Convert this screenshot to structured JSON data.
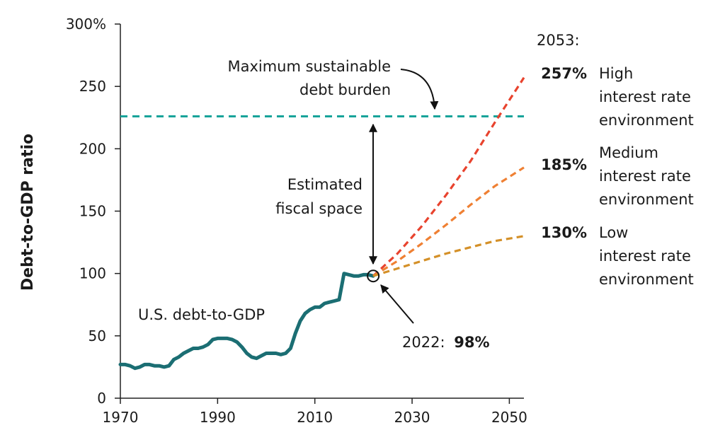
{
  "chart_data": {
    "type": "line",
    "ylabel": "Debt-to-GDP ratio",
    "xlim": [
      1970,
      2053
    ],
    "ylim": [
      0,
      300
    ],
    "y_ticks": [
      "300%",
      "250",
      "200",
      "150",
      "100",
      "50",
      "0"
    ],
    "x_ticks": [
      "1970",
      "1990",
      "2010",
      "2030",
      "2050"
    ],
    "grid": false,
    "series": [
      {
        "name": "U.S. debt-to-GDP",
        "color": "#1b6e73",
        "style": "solid",
        "x": [
          1970,
          1971,
          1972,
          1973,
          1974,
          1975,
          1976,
          1977,
          1978,
          1979,
          1980,
          1981,
          1982,
          1983,
          1984,
          1985,
          1986,
          1987,
          1988,
          1989,
          1990,
          1991,
          1992,
          1993,
          1994,
          1995,
          1996,
          1997,
          1998,
          1999,
          2000,
          2001,
          2002,
          2003,
          2004,
          2005,
          2006,
          2007,
          2008,
          2009,
          2010,
          2011,
          2012,
          2013,
          2014,
          2015,
          2016,
          2017,
          2018,
          2019,
          2020,
          2021,
          2022
        ],
        "y": [
          27,
          27,
          26,
          24,
          25,
          27,
          27,
          26,
          26,
          25,
          26,
          31,
          33,
          36,
          38,
          40,
          40,
          41,
          43,
          47,
          48,
          48,
          48,
          47,
          45,
          41,
          36,
          33,
          32,
          34,
          36,
          36,
          36,
          35,
          36,
          40,
          52,
          62,
          68,
          71,
          73,
          73,
          76,
          77,
          78,
          79,
          100,
          99,
          98,
          98,
          99,
          99,
          98
        ]
      },
      {
        "name": "High interest rate environment",
        "color": "#e8432e",
        "style": "dashed",
        "x": [
          2022,
          2027,
          2032,
          2037,
          2042,
          2047,
          2053
        ],
        "y": [
          98,
          116,
          138,
          163,
          190,
          221,
          257
        ]
      },
      {
        "name": "Medium interest rate environment",
        "color": "#ef8033",
        "style": "dashed",
        "x": [
          2022,
          2027,
          2032,
          2037,
          2042,
          2047,
          2053
        ],
        "y": [
          98,
          110,
          124,
          139,
          155,
          170,
          185
        ]
      },
      {
        "name": "Low interest rate environment",
        "color": "#d49028",
        "style": "dashed",
        "x": [
          2022,
          2027,
          2032,
          2037,
          2042,
          2047,
          2053
        ],
        "y": [
          98,
          104,
          110,
          116,
          121,
          126,
          130
        ]
      }
    ],
    "threshold": {
      "label_line1": "Maximum sustainable",
      "label_line2": "debt burden",
      "value": 226,
      "color": "#17a39a"
    },
    "fiscal_space": {
      "label_line1": "Estimated",
      "label_line2": "fiscal space"
    },
    "marker_2022": {
      "x": 2022,
      "y": 98,
      "label_year": "2022:",
      "label_value": "98%"
    },
    "series_label": "U.S. debt-to-GDP",
    "projection_header": "2053:",
    "projections": [
      {
        "value": "257%",
        "line1": "High",
        "line2": "interest rate",
        "line3": "environment"
      },
      {
        "value": "185%",
        "line1": "Medium",
        "line2": "interest rate",
        "line3": "environment"
      },
      {
        "value": "130%",
        "line1": "Low",
        "line2": "interest rate",
        "line3": "environment"
      }
    ]
  }
}
